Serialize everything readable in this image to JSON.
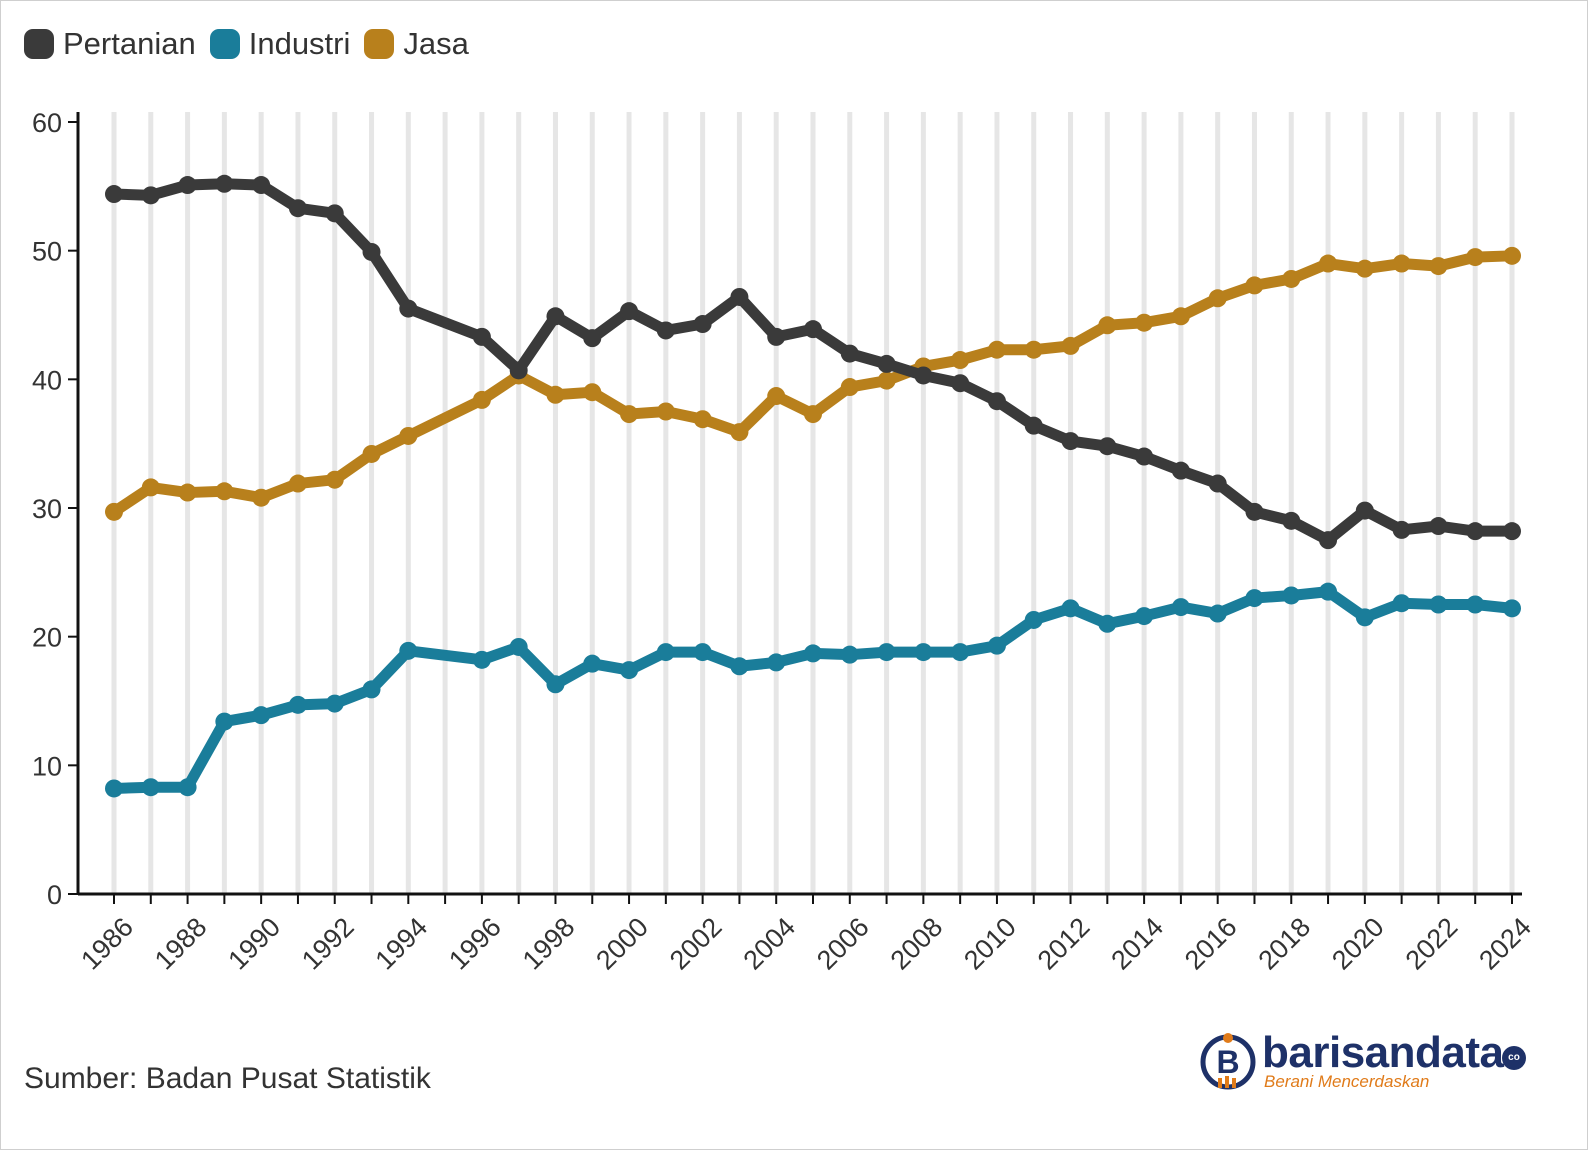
{
  "chart_data": {
    "type": "line",
    "title": "",
    "xlabel": "",
    "ylabel": "",
    "ylim": [
      0,
      60
    ],
    "yticks": [
      0,
      10,
      20,
      30,
      40,
      50,
      60
    ],
    "grid": "vertical",
    "legend_placement": "top-left",
    "x": [
      1986,
      1987,
      1988,
      1989,
      1990,
      1991,
      1992,
      1993,
      1994,
      1996,
      1997,
      1998,
      1999,
      2000,
      2001,
      2002,
      2003,
      2004,
      2005,
      2006,
      2007,
      2008,
      2009,
      2010,
      2011,
      2012,
      2013,
      2014,
      2015,
      2016,
      2017,
      2018,
      2019,
      2020,
      2021,
      2022,
      2023,
      2024
    ],
    "xtick_labels": [
      "1986",
      "1988",
      "1990",
      "1992",
      "1994",
      "1996",
      "1998",
      "2000",
      "2002",
      "2004",
      "2006",
      "2008",
      "2010",
      "2012",
      "2014",
      "2016",
      "2018",
      "2020",
      "2022",
      "2024"
    ],
    "series": [
      {
        "name": "Pertanian",
        "color": "#3a3a3a",
        "values": [
          54.4,
          54.3,
          55.1,
          55.2,
          55.1,
          53.3,
          52.9,
          49.9,
          45.5,
          43.3,
          40.7,
          44.9,
          43.2,
          45.3,
          43.8,
          44.3,
          46.4,
          43.3,
          43.9,
          42.0,
          41.2,
          40.3,
          39.7,
          38.3,
          36.4,
          35.2,
          34.8,
          34.0,
          32.9,
          31.9,
          29.7,
          29.0,
          27.5,
          29.8,
          28.3,
          28.6,
          28.2,
          28.2
        ]
      },
      {
        "name": "Industri",
        "color": "#1a7d9a",
        "values": [
          8.2,
          8.3,
          8.3,
          13.4,
          13.9,
          14.7,
          14.8,
          15.9,
          18.9,
          18.2,
          19.2,
          16.3,
          17.9,
          17.4,
          18.8,
          18.8,
          17.7,
          18.0,
          18.7,
          18.6,
          18.8,
          18.8,
          18.8,
          19.3,
          21.3,
          22.2,
          21.0,
          21.6,
          22.3,
          21.8,
          23.0,
          23.2,
          23.5,
          21.5,
          22.6,
          22.5,
          22.5,
          22.2
        ]
      },
      {
        "name": "Jasa",
        "color": "#b8801c",
        "values": [
          29.7,
          31.6,
          31.2,
          31.3,
          30.8,
          31.9,
          32.2,
          34.2,
          35.6,
          38.4,
          40.3,
          38.8,
          39.0,
          37.3,
          37.5,
          36.9,
          35.9,
          38.7,
          37.3,
          39.4,
          39.9,
          41.0,
          41.5,
          42.3,
          42.3,
          42.6,
          44.2,
          44.4,
          44.9,
          46.3,
          47.3,
          47.8,
          49.0,
          48.6,
          49.0,
          48.8,
          49.5,
          49.6
        ]
      }
    ]
  },
  "legend": [
    {
      "label": "Pertanian",
      "color": "#3a3a3a"
    },
    {
      "label": "Industri",
      "color": "#1a7d9a"
    },
    {
      "label": "Jasa",
      "color": "#b8801c"
    }
  ],
  "source": "Sumber: Badan Pusat Statistik",
  "brand": {
    "name": "barisandata",
    "suffix": "co",
    "tagline": "Berani Mencerdaskan",
    "primary_color": "#1e3168",
    "accent_color": "#e07b1a"
  }
}
